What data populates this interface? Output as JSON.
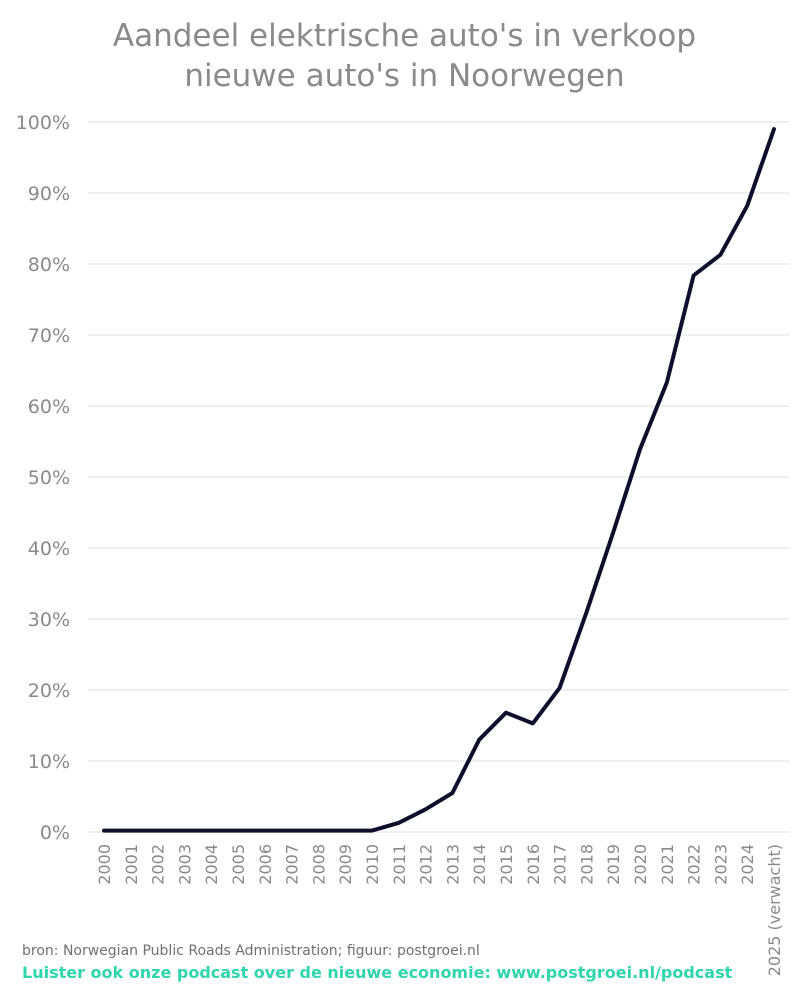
{
  "chart_data": {
    "type": "line",
    "title_line1": "Aandeel elektrische auto's in verkoop",
    "title_line2": "nieuwe auto's in Noorwegen",
    "xlabel": "",
    "ylabel": "",
    "categories": [
      "2000",
      "2001",
      "2002",
      "2003",
      "2004",
      "2005",
      "2006",
      "2007",
      "2008",
      "2009",
      "2010",
      "2011",
      "2012",
      "2013",
      "2014",
      "2015",
      "2016",
      "2017",
      "2018",
      "2019",
      "2020",
      "2021",
      "2022",
      "2023",
      "2024",
      "2025 (verwacht)"
    ],
    "series": [
      {
        "values": [
          0.2,
          0.2,
          0.2,
          0.2,
          0.2,
          0.2,
          0.2,
          0.2,
          0.2,
          0.2,
          0.2,
          1.3,
          3.2,
          5.5,
          13.0,
          16.8,
          15.3,
          20.3,
          30.9,
          42.2,
          53.9,
          63.3,
          78.4,
          81.3,
          88.2,
          99.0
        ]
      }
    ],
    "ylim": [
      0,
      100
    ],
    "yticks": [
      "0%",
      "10%",
      "20%",
      "30%",
      "40%",
      "50%",
      "60%",
      "70%",
      "80%",
      "90%",
      "100%"
    ],
    "grid": true,
    "line_color": "#0d0f2b"
  },
  "footer": {
    "source": "bron: Norwegian Public Roads Administration; figuur: postgroei.nl",
    "podcast": "Luister ook onze podcast over de nieuwe economie: www.postgroei.nl/podcast",
    "podcast_color": "#2fd6ad"
  }
}
